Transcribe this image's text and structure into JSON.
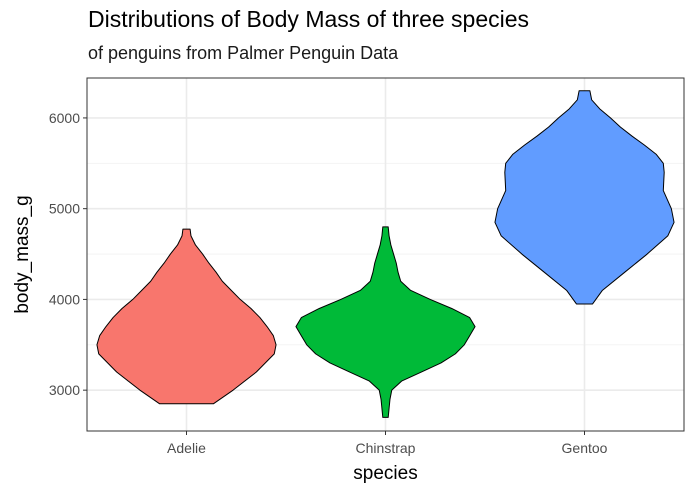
{
  "chart_data": {
    "type": "violin",
    "title": "Distributions of Body Mass of three species",
    "subtitle": "of penguins from Palmer Penguin Data",
    "xlabel": "species",
    "ylabel": "body_mass_g",
    "categories": [
      "Adelie",
      "Chinstrap",
      "Gentoo"
    ],
    "ylim": [
      2550,
      6440
    ],
    "yticks": [
      3000,
      4000,
      5000,
      6000
    ],
    "grid": true,
    "legend": "none",
    "colors": [
      "#F8766D",
      "#00BA38",
      "#619CFF"
    ],
    "series": [
      {
        "category": "Adelie",
        "min": 2850,
        "max": 4775,
        "profile": [
          [
            2850,
            0.3
          ],
          [
            3000,
            0.52
          ],
          [
            3200,
            0.78
          ],
          [
            3400,
            0.98
          ],
          [
            3500,
            1.0
          ],
          [
            3600,
            0.97
          ],
          [
            3700,
            0.9
          ],
          [
            3800,
            0.82
          ],
          [
            3900,
            0.72
          ],
          [
            4000,
            0.6
          ],
          [
            4100,
            0.5
          ],
          [
            4200,
            0.4
          ],
          [
            4300,
            0.33
          ],
          [
            4400,
            0.25
          ],
          [
            4500,
            0.18
          ],
          [
            4600,
            0.1
          ],
          [
            4700,
            0.05
          ],
          [
            4775,
            0.04
          ]
        ]
      },
      {
        "category": "Chinstrap",
        "min": 2700,
        "max": 4800,
        "profile": [
          [
            2700,
            0.03
          ],
          [
            2900,
            0.05
          ],
          [
            3000,
            0.07
          ],
          [
            3100,
            0.18
          ],
          [
            3200,
            0.4
          ],
          [
            3300,
            0.62
          ],
          [
            3400,
            0.78
          ],
          [
            3500,
            0.88
          ],
          [
            3600,
            0.94
          ],
          [
            3700,
            1.0
          ],
          [
            3800,
            0.94
          ],
          [
            3900,
            0.74
          ],
          [
            4000,
            0.5
          ],
          [
            4100,
            0.28
          ],
          [
            4200,
            0.17
          ],
          [
            4300,
            0.14
          ],
          [
            4400,
            0.12
          ],
          [
            4500,
            0.09
          ],
          [
            4600,
            0.06
          ],
          [
            4700,
            0.04
          ],
          [
            4800,
            0.03
          ]
        ]
      },
      {
        "category": "Gentoo",
        "min": 3950,
        "max": 6300,
        "profile": [
          [
            3950,
            0.09
          ],
          [
            4100,
            0.2
          ],
          [
            4300,
            0.45
          ],
          [
            4500,
            0.7
          ],
          [
            4700,
            0.93
          ],
          [
            4850,
            1.0
          ],
          [
            5000,
            0.97
          ],
          [
            5200,
            0.88
          ],
          [
            5400,
            0.89
          ],
          [
            5500,
            0.88
          ],
          [
            5600,
            0.8
          ],
          [
            5700,
            0.67
          ],
          [
            5800,
            0.53
          ],
          [
            5900,
            0.4
          ],
          [
            6000,
            0.29
          ],
          [
            6100,
            0.17
          ],
          [
            6200,
            0.08
          ],
          [
            6300,
            0.06
          ]
        ]
      }
    ]
  }
}
